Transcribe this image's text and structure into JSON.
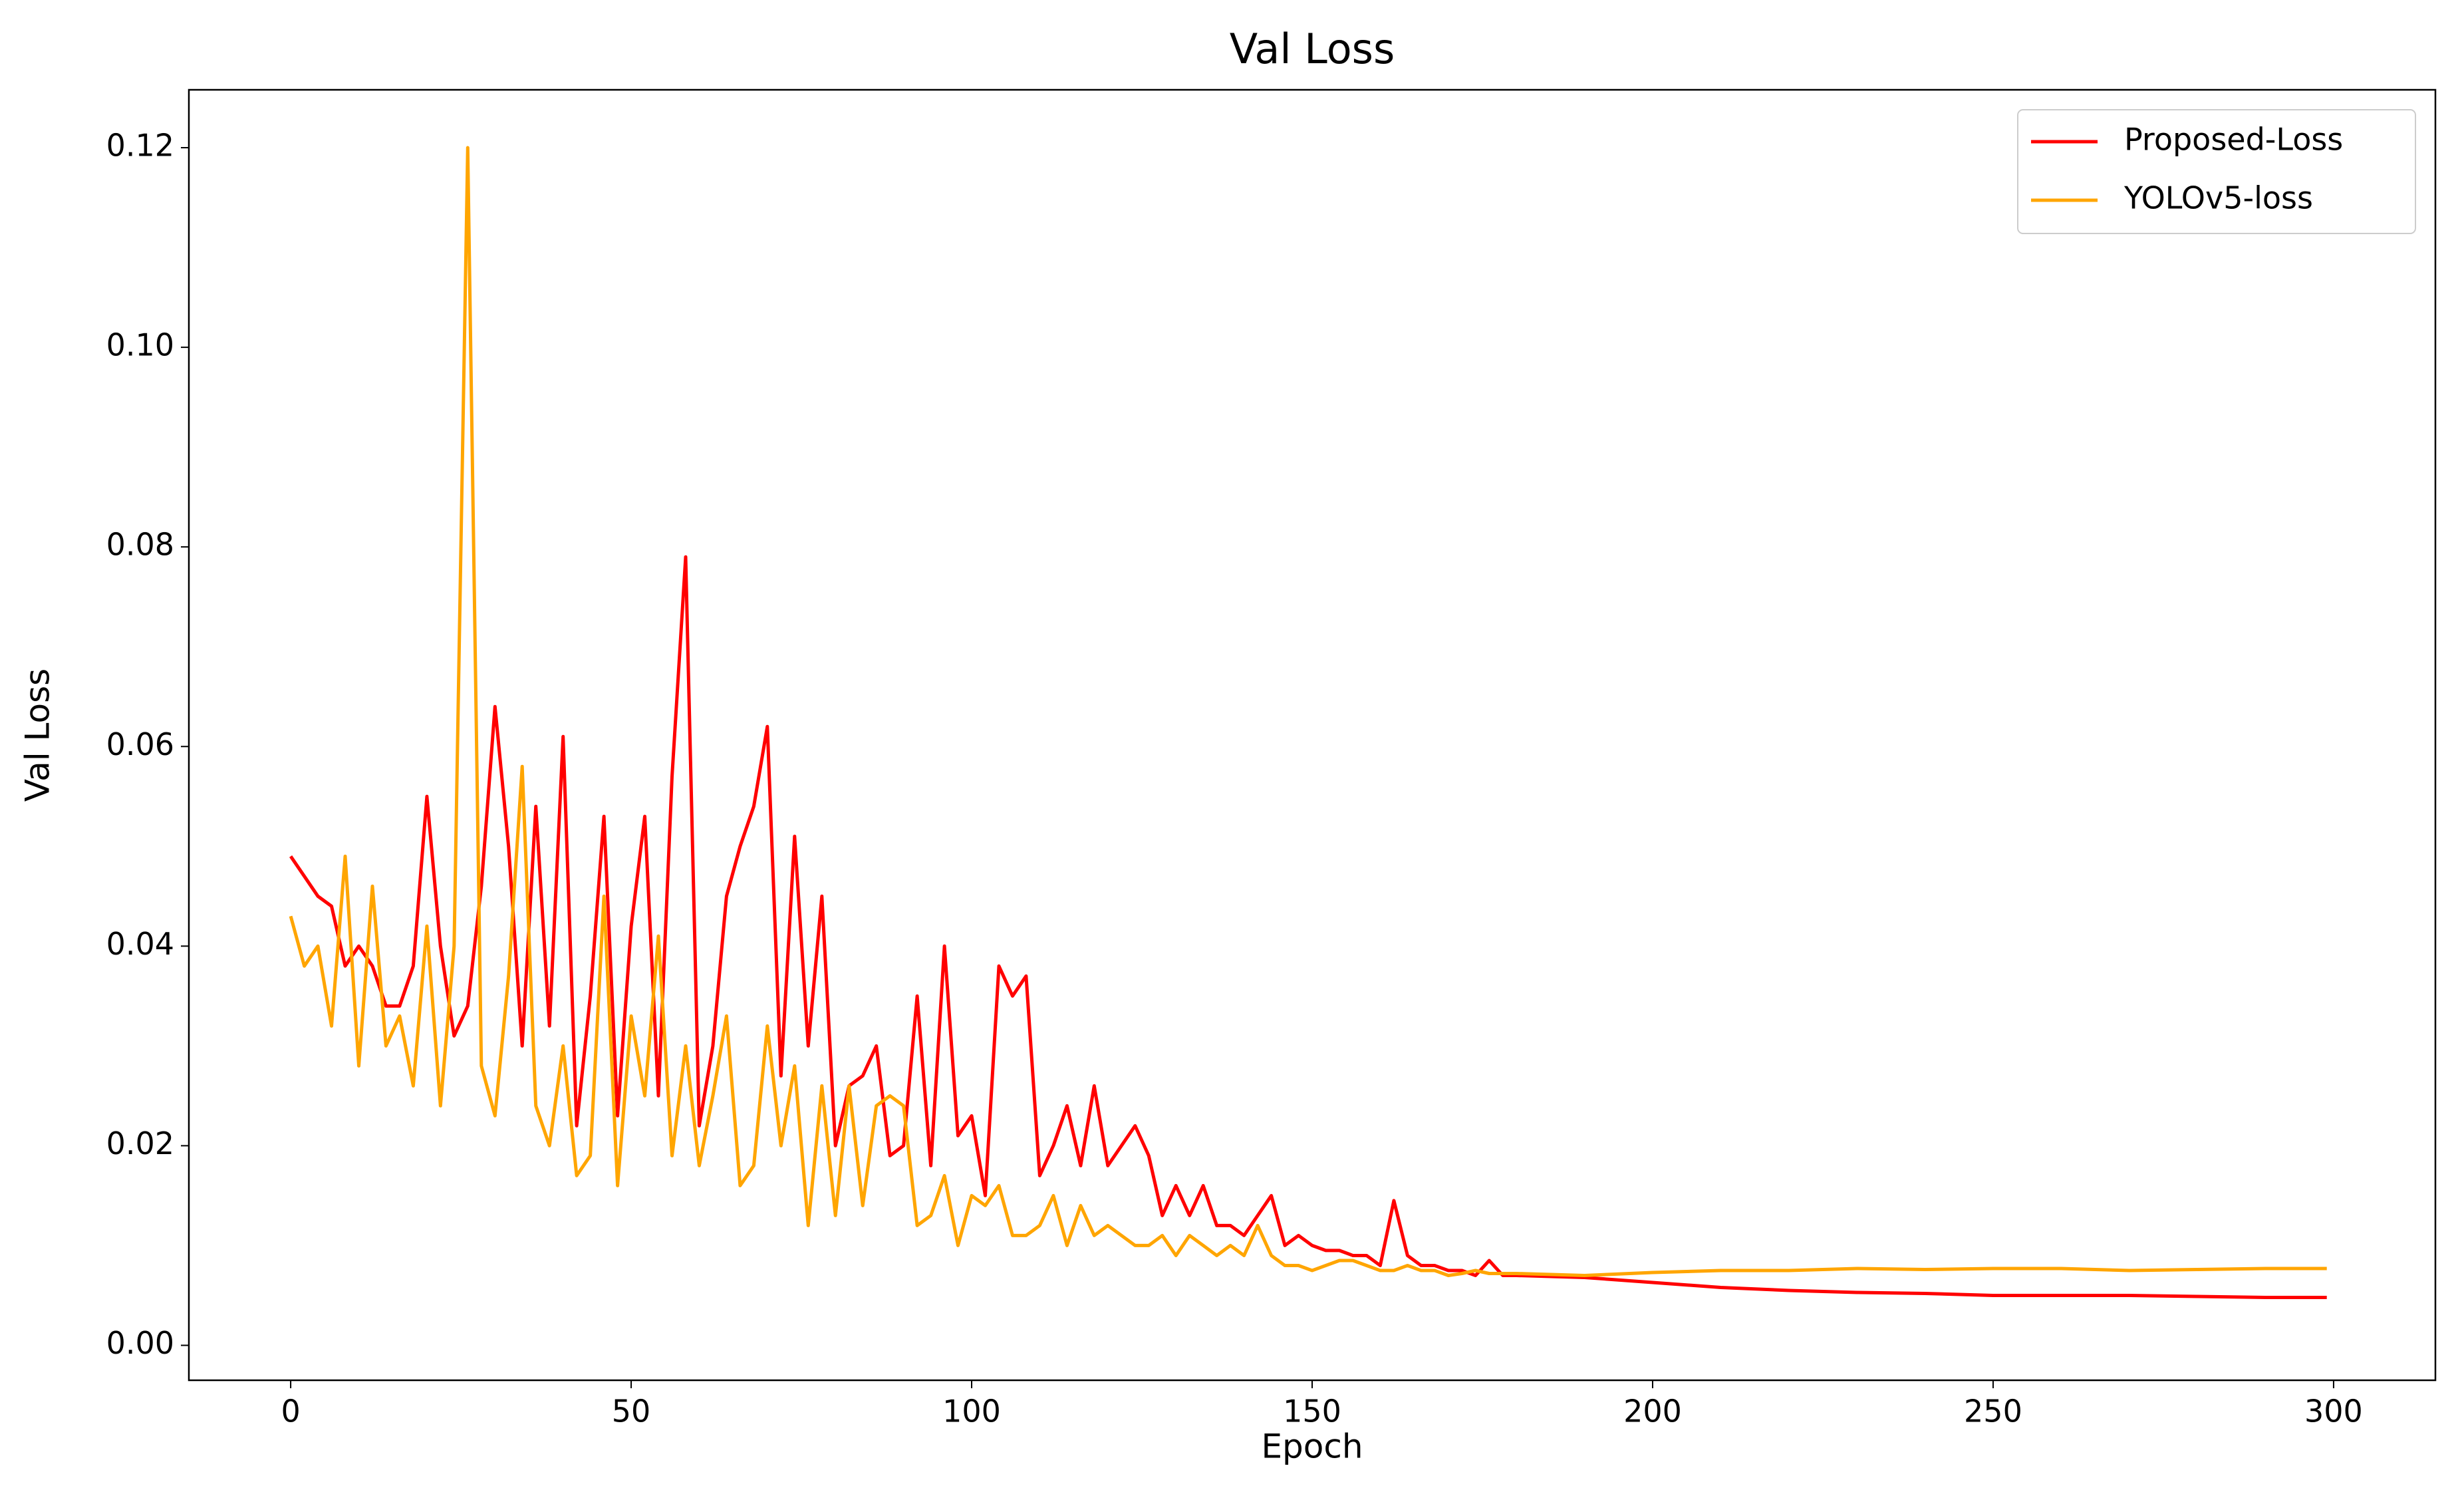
{
  "chart_data": {
    "type": "line",
    "title": "Val Loss",
    "x_label": "Epoch",
    "y_label": "Val Loss",
    "x": [
      0,
      2,
      4,
      6,
      8,
      10,
      12,
      14,
      16,
      18,
      20,
      22,
      24,
      26,
      28,
      30,
      32,
      34,
      36,
      38,
      40,
      42,
      44,
      46,
      48,
      50,
      52,
      54,
      56,
      58,
      60,
      62,
      64,
      66,
      68,
      70,
      72,
      74,
      76,
      78,
      80,
      82,
      84,
      86,
      88,
      90,
      92,
      94,
      96,
      98,
      100,
      102,
      104,
      106,
      108,
      110,
      112,
      114,
      116,
      118,
      120,
      122,
      124,
      126,
      128,
      130,
      132,
      134,
      136,
      138,
      140,
      142,
      144,
      146,
      148,
      150,
      152,
      154,
      156,
      158,
      160,
      162,
      164,
      166,
      168,
      170,
      172,
      174,
      176,
      178,
      180,
      190,
      200,
      210,
      220,
      230,
      240,
      250,
      260,
      270,
      280,
      290,
      299
    ],
    "series": [
      {
        "name": "Proposed-Loss",
        "color": "#ff0000",
        "values": [
          0.049,
          0.047,
          0.045,
          0.044,
          0.038,
          0.04,
          0.038,
          0.034,
          0.034,
          0.038,
          0.055,
          0.04,
          0.031,
          0.034,
          0.046,
          0.064,
          0.05,
          0.03,
          0.054,
          0.032,
          0.061,
          0.022,
          0.035,
          0.053,
          0.023,
          0.042,
          0.053,
          0.025,
          0.057,
          0.079,
          0.022,
          0.03,
          0.045,
          0.05,
          0.054,
          0.062,
          0.027,
          0.051,
          0.03,
          0.045,
          0.02,
          0.026,
          0.027,
          0.03,
          0.019,
          0.02,
          0.035,
          0.018,
          0.04,
          0.021,
          0.023,
          0.015,
          0.038,
          0.035,
          0.037,
          0.017,
          0.02,
          0.024,
          0.018,
          0.026,
          0.018,
          0.02,
          0.022,
          0.019,
          0.013,
          0.016,
          0.013,
          0.016,
          0.012,
          0.012,
          0.011,
          0.013,
          0.015,
          0.01,
          0.011,
          0.01,
          0.0095,
          0.0095,
          0.009,
          0.009,
          0.008,
          0.0145,
          0.009,
          0.008,
          0.008,
          0.0075,
          0.0075,
          0.007,
          0.0085,
          0.007,
          0.007,
          0.0068,
          0.0063,
          0.0058,
          0.0055,
          0.0053,
          0.0052,
          0.005,
          0.005,
          0.005,
          0.0049,
          0.0048,
          0.0048
        ]
      },
      {
        "name": "YOLOv5-loss",
        "color": "#ffa500",
        "values": [
          0.043,
          0.038,
          0.04,
          0.032,
          0.049,
          0.028,
          0.046,
          0.03,
          0.033,
          0.026,
          0.042,
          0.024,
          0.04,
          0.12,
          0.028,
          0.023,
          0.037,
          0.058,
          0.024,
          0.02,
          0.03,
          0.017,
          0.019,
          0.045,
          0.016,
          0.033,
          0.025,
          0.041,
          0.019,
          0.03,
          0.018,
          0.025,
          0.033,
          0.016,
          0.018,
          0.032,
          0.02,
          0.028,
          0.012,
          0.026,
          0.013,
          0.026,
          0.014,
          0.024,
          0.025,
          0.024,
          0.012,
          0.013,
          0.017,
          0.01,
          0.015,
          0.014,
          0.016,
          0.011,
          0.011,
          0.012,
          0.015,
          0.01,
          0.014,
          0.011,
          0.012,
          0.011,
          0.01,
          0.01,
          0.011,
          0.009,
          0.011,
          0.01,
          0.009,
          0.01,
          0.009,
          0.012,
          0.009,
          0.008,
          0.008,
          0.0075,
          0.008,
          0.0085,
          0.0085,
          0.008,
          0.0075,
          0.0075,
          0.008,
          0.0075,
          0.0075,
          0.007,
          0.0072,
          0.0075,
          0.0072,
          0.0072,
          0.0072,
          0.007,
          0.0073,
          0.0075,
          0.0075,
          0.0077,
          0.0076,
          0.0077,
          0.0077,
          0.0075,
          0.0076,
          0.0077,
          0.0077
        ]
      }
    ],
    "xlim": [
      -14.95,
      314.95
    ],
    "ylim": [
      -0.0035,
      0.1258
    ],
    "xticks": [
      0,
      50,
      100,
      150,
      200,
      250,
      300
    ],
    "yticks": [
      {
        "value": 0,
        "label": "0.00"
      },
      {
        "value": 0.02,
        "label": "0.02"
      },
      {
        "value": 0.04,
        "label": "0.04"
      },
      {
        "value": 0.06,
        "label": "0.06"
      },
      {
        "value": 0.08,
        "label": "0.08"
      },
      {
        "value": 0.1,
        "label": "0.10"
      },
      {
        "value": 0.12,
        "label": "0.12"
      }
    ],
    "grid": false,
    "legend": "upper right"
  }
}
